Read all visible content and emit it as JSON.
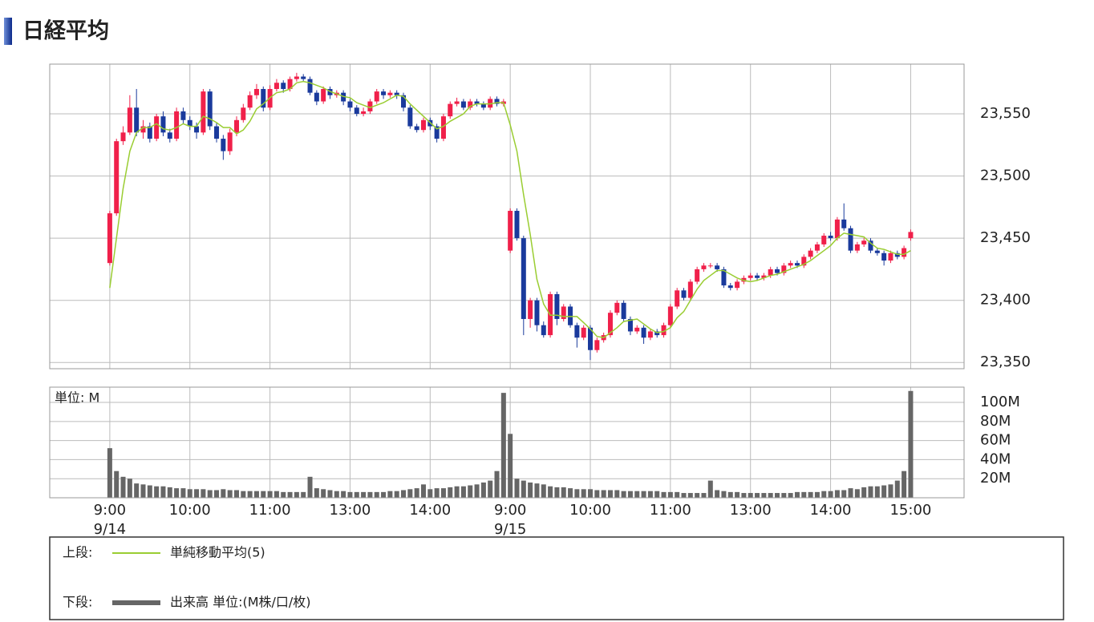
{
  "chart_data": [
    {
      "type": "candlestick",
      "title": "日経平均",
      "legend_label": "上段:",
      "up_color": "#f0204a",
      "down_color": "#1a3a9c",
      "ylim": [
        23345,
        23590
      ],
      "yticks": [
        {
          "value": 23350,
          "label": "23,350"
        },
        {
          "value": 23400,
          "label": "23,400"
        },
        {
          "value": 23450,
          "label": "23,450"
        },
        {
          "value": 23500,
          "label": "23,500"
        },
        {
          "value": 23550,
          "label": "23,550"
        }
      ],
      "grid": true,
      "ohlc": [
        [
          23430,
          23472,
          23428,
          23470
        ],
        [
          23470,
          23530,
          23468,
          23528
        ],
        [
          23528,
          23540,
          23525,
          23535
        ],
        [
          23535,
          23565,
          23533,
          23555
        ],
        [
          23555,
          23570,
          23532,
          23535
        ],
        [
          23535,
          23545,
          23530,
          23540
        ],
        [
          23540,
          23543,
          23527,
          23530
        ],
        [
          23530,
          23550,
          23528,
          23548
        ],
        [
          23548,
          23552,
          23532,
          23535
        ],
        [
          23535,
          23538,
          23527,
          23530
        ],
        [
          23530,
          23555,
          23528,
          23552
        ],
        [
          23552,
          23555,
          23542,
          23545
        ],
        [
          23545,
          23548,
          23537,
          23540
        ],
        [
          23540,
          23543,
          23530,
          23535
        ],
        [
          23535,
          23570,
          23533,
          23568
        ],
        [
          23568,
          23570,
          23537,
          23540
        ],
        [
          23540,
          23543,
          23527,
          23530
        ],
        [
          23530,
          23533,
          23513,
          23520
        ],
        [
          23520,
          23538,
          23517,
          23535
        ],
        [
          23535,
          23548,
          23532,
          23545
        ],
        [
          23545,
          23558,
          23543,
          23555
        ],
        [
          23555,
          23568,
          23553,
          23565
        ],
        [
          23565,
          23574,
          23562,
          23570
        ],
        [
          23570,
          23572,
          23552,
          23555
        ],
        [
          23555,
          23573,
          23553,
          23570
        ],
        [
          23570,
          23578,
          23568,
          23575
        ],
        [
          23575,
          23577,
          23567,
          23570
        ],
        [
          23570,
          23580,
          23568,
          23578
        ],
        [
          23578,
          23583,
          23576,
          23580
        ],
        [
          23580,
          23582,
          23576,
          23578
        ],
        [
          23578,
          23580,
          23565,
          23567
        ],
        [
          23567,
          23569,
          23557,
          23560
        ],
        [
          23560,
          23572,
          23558,
          23570
        ],
        [
          23570,
          23572,
          23562,
          23565
        ],
        [
          23565,
          23569,
          23563,
          23567
        ],
        [
          23567,
          23569,
          23557,
          23560
        ],
        [
          23560,
          23562,
          23552,
          23555
        ],
        [
          23555,
          23557,
          23548,
          23550
        ],
        [
          23550,
          23555,
          23548,
          23552
        ],
        [
          23552,
          23562,
          23550,
          23560
        ],
        [
          23560,
          23570,
          23558,
          23568
        ],
        [
          23568,
          23570,
          23562,
          23565
        ],
        [
          23565,
          23569,
          23563,
          23567
        ],
        [
          23567,
          23569,
          23562,
          23565
        ],
        [
          23565,
          23567,
          23552,
          23555
        ],
        [
          23555,
          23557,
          23538,
          23540
        ],
        [
          23540,
          23542,
          23535,
          23537
        ],
        [
          23537,
          23547,
          23535,
          23545
        ],
        [
          23545,
          23547,
          23537,
          23540
        ],
        [
          23540,
          23542,
          23527,
          23530
        ],
        [
          23530,
          23550,
          23528,
          23548
        ],
        [
          23548,
          23560,
          23546,
          23558
        ],
        [
          23558,
          23563,
          23556,
          23560
        ],
        [
          23560,
          23562,
          23553,
          23555
        ],
        [
          23555,
          23562,
          23553,
          23560
        ],
        [
          23560,
          23562,
          23556,
          23558
        ],
        [
          23558,
          23560,
          23553,
          23555
        ],
        [
          23555,
          23564,
          23553,
          23562
        ],
        [
          23562,
          23564,
          23556,
          23558
        ],
        [
          23558,
          23562,
          23556,
          23560
        ],
        [
          23440,
          23474,
          23438,
          23472
        ],
        [
          23472,
          23474,
          23448,
          23450
        ],
        [
          23450,
          23452,
          23372,
          23385
        ],
        [
          23385,
          23402,
          23378,
          23400
        ],
        [
          23400,
          23402,
          23375,
          23380
        ],
        [
          23380,
          23383,
          23370,
          23372
        ],
        [
          23372,
          23407,
          23370,
          23405
        ],
        [
          23405,
          23407,
          23380,
          23385
        ],
        [
          23385,
          23397,
          23383,
          23395
        ],
        [
          23395,
          23397,
          23378,
          23380
        ],
        [
          23380,
          23382,
          23362,
          23370
        ],
        [
          23370,
          23380,
          23368,
          23378
        ],
        [
          23378,
          23380,
          23352,
          23360
        ],
        [
          23360,
          23370,
          23358,
          23368
        ],
        [
          23368,
          23374,
          23366,
          23372
        ],
        [
          23372,
          23392,
          23370,
          23390
        ],
        [
          23390,
          23400,
          23388,
          23398
        ],
        [
          23398,
          23400,
          23383,
          23385
        ],
        [
          23385,
          23387,
          23372,
          23375
        ],
        [
          23375,
          23380,
          23373,
          23378
        ],
        [
          23378,
          23380,
          23365,
          23370
        ],
        [
          23370,
          23377,
          23368,
          23375
        ],
        [
          23375,
          23377,
          23370,
          23372
        ],
        [
          23372,
          23382,
          23370,
          23380
        ],
        [
          23380,
          23397,
          23378,
          23395
        ],
        [
          23395,
          23410,
          23393,
          23408
        ],
        [
          23408,
          23410,
          23400,
          23402
        ],
        [
          23402,
          23417,
          23400,
          23415
        ],
        [
          23415,
          23427,
          23413,
          23425
        ],
        [
          23425,
          23430,
          23423,
          23428
        ],
        [
          23428,
          23430,
          23426,
          23428
        ],
        [
          23428,
          23430,
          23423,
          23425
        ],
        [
          23425,
          23427,
          23410,
          23412
        ],
        [
          23412,
          23414,
          23408,
          23410
        ],
        [
          23410,
          23417,
          23408,
          23415
        ],
        [
          23415,
          23420,
          23413,
          23418
        ],
        [
          23418,
          23422,
          23416,
          23420
        ],
        [
          23420,
          23422,
          23416,
          23418
        ],
        [
          23418,
          23422,
          23416,
          23420
        ],
        [
          23420,
          23427,
          23418,
          23425
        ],
        [
          23425,
          23427,
          23420,
          23422
        ],
        [
          23422,
          23430,
          23420,
          23428
        ],
        [
          23428,
          23432,
          23426,
          23430
        ],
        [
          23430,
          23432,
          23426,
          23428
        ],
        [
          23428,
          23437,
          23426,
          23435
        ],
        [
          23435,
          23442,
          23433,
          23440
        ],
        [
          23440,
          23447,
          23438,
          23445
        ],
        [
          23445,
          23454,
          23443,
          23452
        ],
        [
          23452,
          23455,
          23448,
          23450
        ],
        [
          23450,
          23467,
          23448,
          23465
        ],
        [
          23465,
          23478,
          23456,
          23458
        ],
        [
          23458,
          23460,
          23438,
          23440
        ],
        [
          23440,
          23447,
          23438,
          23445
        ],
        [
          23445,
          23450,
          23443,
          23448
        ],
        [
          23448,
          23450,
          23438,
          23440
        ],
        [
          23440,
          23442,
          23436,
          23438
        ],
        [
          23438,
          23440,
          23428,
          23432
        ],
        [
          23432,
          23440,
          23430,
          23438
        ],
        [
          23438,
          23440,
          23433,
          23435
        ],
        [
          23435,
          23444,
          23433,
          23442
        ],
        [
          23450,
          23457,
          23448,
          23455
        ]
      ],
      "series": [
        {
          "name": "単純移動平均(5)",
          "color": "#9acd32",
          "values": [
            23410,
            23450,
            23490,
            23520,
            23535,
            23539,
            23539,
            23542,
            23538,
            23537,
            23539,
            23542,
            23540,
            23540,
            23548,
            23546,
            23543,
            23539,
            23539,
            23534,
            23537,
            23544,
            23554,
            23558,
            23563,
            23567,
            23568,
            23570,
            23575,
            23576,
            23575,
            23573,
            23571,
            23568,
            23566,
            23564,
            23563,
            23559,
            23557,
            23555,
            23557,
            23559,
            23562,
            23565,
            23564,
            23558,
            23553,
            23548,
            23543,
            23538,
            23540,
            23544,
            23547,
            23550,
            23556,
            23558,
            23558,
            23558,
            23559,
            23559,
            23541,
            23520,
            23485,
            23453,
            23417,
            23397,
            23388,
            23388,
            23387,
            23387,
            23387,
            23382,
            23377,
            23371,
            23370,
            23374,
            23378,
            23383,
            23384,
            23385,
            23381,
            23377,
            23374,
            23375,
            23378,
            23386,
            23391,
            23400,
            23409,
            23416,
            23420,
            23424,
            23424,
            23421,
            23418,
            23416,
            23415,
            23416,
            23418,
            23420,
            23421,
            23423,
            23425,
            23427,
            23429,
            23432,
            23436,
            23440,
            23444,
            23450,
            23454,
            23453,
            23452,
            23451,
            23446,
            23442,
            23441,
            23439,
            23437,
            23437,
            23440
          ]
        }
      ]
    },
    {
      "type": "bar",
      "legend_label": "下段:",
      "name": "出来高 単位:(M株/口/枚)",
      "unit_label": "単位: M",
      "color": "#666666",
      "ylim": [
        0,
        116
      ],
      "yticks": [
        {
          "value": 20,
          "label": "20M"
        },
        {
          "value": 40,
          "label": "40M"
        },
        {
          "value": 60,
          "label": "60M"
        },
        {
          "value": 80,
          "label": "80M"
        },
        {
          "value": 100,
          "label": "100M"
        }
      ],
      "grid": true,
      "xlim": [
        -9,
        128
      ],
      "xticks": [
        {
          "value": 0,
          "label": "9:00"
        },
        {
          "value": 12,
          "label": "10:00"
        },
        {
          "value": 24,
          "label": "11:00"
        },
        {
          "value": 36,
          "label": "13:00"
        },
        {
          "value": 48,
          "label": "14:00"
        },
        {
          "value": 60,
          "label": "9:00"
        },
        {
          "value": 72,
          "label": "10:00"
        },
        {
          "value": 84,
          "label": "11:00"
        },
        {
          "value": 96,
          "label": "13:00"
        },
        {
          "value": 108,
          "label": "14:00"
        },
        {
          "value": 120,
          "label": "15:00"
        }
      ],
      "xdates": [
        {
          "value": 0,
          "label": "9/14"
        },
        {
          "value": 60,
          "label": "9/15"
        }
      ],
      "values": [
        52,
        28,
        22,
        20,
        15,
        14,
        13,
        12,
        12,
        11,
        10,
        10,
        9,
        9,
        9,
        8,
        8,
        9,
        8,
        8,
        7,
        7,
        7,
        7,
        7,
        7,
        6,
        6,
        6,
        6,
        22,
        10,
        9,
        8,
        7,
        7,
        6,
        6,
        6,
        6,
        6,
        6,
        7,
        7,
        8,
        9,
        10,
        14,
        9,
        10,
        10,
        11,
        12,
        12,
        13,
        14,
        16,
        18,
        28,
        110,
        67,
        20,
        18,
        16,
        15,
        14,
        12,
        11,
        11,
        10,
        9,
        9,
        9,
        8,
        8,
        8,
        8,
        7,
        7,
        7,
        7,
        7,
        7,
        6,
        6,
        6,
        5,
        5,
        5,
        5,
        18,
        8,
        7,
        6,
        6,
        5,
        5,
        5,
        5,
        5,
        5,
        5,
        5,
        6,
        6,
        6,
        6,
        7,
        7,
        8,
        8,
        10,
        9,
        11,
        12,
        12,
        13,
        14,
        18,
        28,
        112
      ]
    }
  ]
}
